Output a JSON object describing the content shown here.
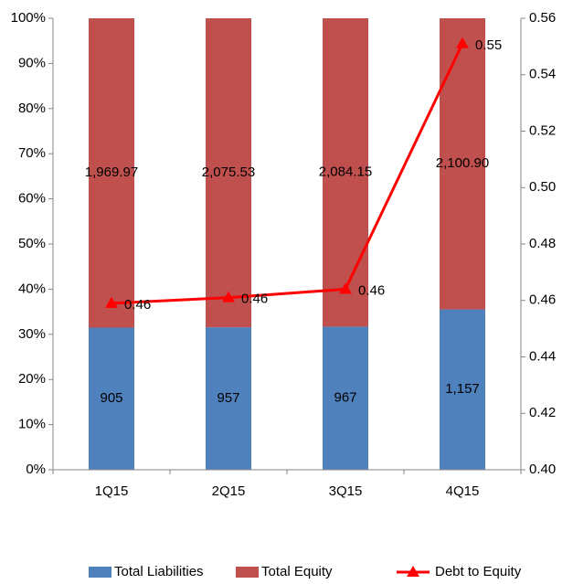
{
  "chart_data": {
    "type": "bar",
    "stacked": "percent",
    "categories": [
      "1Q15",
      "2Q15",
      "3Q15",
      "4Q15"
    ],
    "series": [
      {
        "name": "Total Liabilities",
        "color": "#4f81bd",
        "values": [
          905,
          957,
          967,
          1157
        ],
        "value_labels": [
          "905",
          "957",
          "967",
          "1,157"
        ]
      },
      {
        "name": "Total Equity",
        "color": "#c0504d",
        "values": [
          1969.97,
          2075.53,
          2084.15,
          2100.9
        ],
        "value_labels": [
          "1,969.97",
          "2,075.53",
          "2,084.15",
          "2,100.90"
        ]
      },
      {
        "name": "Debt to Equity",
        "type": "line",
        "axis": "y2",
        "color": "#ff0000",
        "values": [
          0.459,
          0.461,
          0.464,
          0.551
        ],
        "value_labels": [
          "0.46",
          "0.46",
          "0.46",
          "0.55"
        ]
      }
    ],
    "ylim": [
      0,
      100
    ],
    "yticks": [
      {
        "value": 0,
        "label": "0%"
      },
      {
        "value": 10,
        "label": "10%"
      },
      {
        "value": 20,
        "label": "20%"
      },
      {
        "value": 30,
        "label": "30%"
      },
      {
        "value": 40,
        "label": "40%"
      },
      {
        "value": 50,
        "label": "50%"
      },
      {
        "value": 60,
        "label": "60%"
      },
      {
        "value": 70,
        "label": "70%"
      },
      {
        "value": 80,
        "label": "80%"
      },
      {
        "value": 90,
        "label": "90%"
      },
      {
        "value": 100,
        "label": "100%"
      }
    ],
    "y2lim": [
      0.4,
      0.56
    ],
    "y2ticks": [
      {
        "value": 0.4,
        "label": "0.40"
      },
      0.42,
      0.44,
      0.46,
      0.48,
      {
        "value": 0.5,
        "label": "0.50"
      },
      0.52,
      0.54,
      0.56
    ],
    "grid": false,
    "legend": "bottom"
  }
}
